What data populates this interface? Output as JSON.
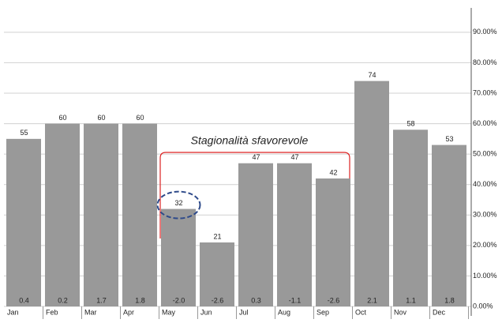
{
  "chart_data": {
    "type": "bar",
    "annotation": "Stagionalità sfavorevole",
    "categories": [
      "Jan",
      "Feb",
      "Mar",
      "Apr",
      "May",
      "Jun",
      "Jul",
      "Aug",
      "Sep",
      "Oct",
      "Nov",
      "Dec"
    ],
    "values": [
      55,
      60,
      60,
      60,
      32,
      21,
      47,
      47,
      42,
      74,
      58,
      53
    ],
    "bottom_values": [
      0.4,
      0.2,
      1.7,
      1.8,
      -2.0,
      -2.6,
      0.3,
      -1.1,
      -2.6,
      2.1,
      1.1,
      1.8
    ],
    "bottom_value_labels": [
      "0.4",
      "0.2",
      "1.7",
      "1.8",
      "-2.0",
      "-2.6",
      "0.3",
      "-1.1",
      "-2.6",
      "2.1",
      "1.1",
      "1.8"
    ],
    "color": "#999999",
    "ylim": [
      0,
      98
    ],
    "yticks": [
      {
        "value": 0,
        "label": "0.00%"
      },
      {
        "value": 10,
        "label": "10.00%"
      },
      {
        "value": 20,
        "label": "20.00%"
      },
      {
        "value": 30,
        "label": "30.00%"
      },
      {
        "value": 40,
        "label": "40.00%"
      },
      {
        "value": 50,
        "label": "50.00%"
      },
      {
        "value": 60,
        "label": "60.00%"
      },
      {
        "value": 70,
        "label": "70.00%"
      },
      {
        "value": 80,
        "label": "80.00%"
      },
      {
        "value": 90,
        "label": "90.00%"
      }
    ],
    "grid": true
  }
}
